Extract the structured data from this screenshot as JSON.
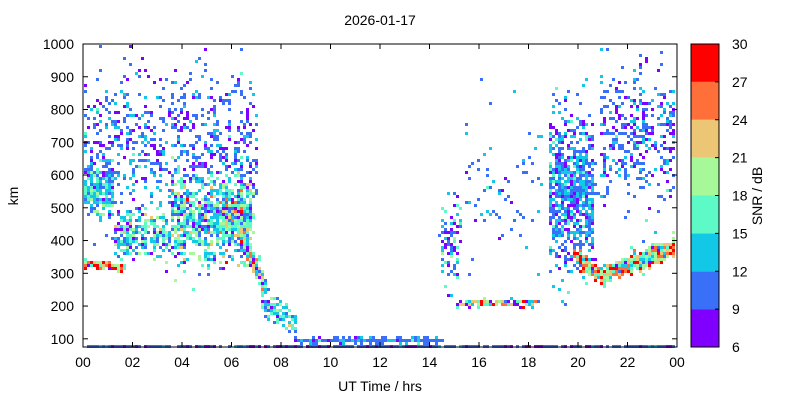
{
  "chart_data": {
    "type": "scatter",
    "title": "2026-01-17",
    "xlabel": "UT Time / hrs",
    "ylabel": "km",
    "xlim": [
      0,
      24
    ],
    "ylim": [
      75,
      1000
    ],
    "x_ticks": [
      "00",
      "02",
      "04",
      "06",
      "08",
      "10",
      "12",
      "14",
      "16",
      "18",
      "20",
      "22",
      "00"
    ],
    "x_tick_values": [
      0,
      2,
      4,
      6,
      8,
      10,
      12,
      14,
      16,
      18,
      20,
      22,
      24
    ],
    "y_ticks": [
      100,
      200,
      300,
      400,
      500,
      600,
      700,
      800,
      900,
      1000
    ],
    "colorbar": {
      "label": "SNR / dB",
      "range": [
        6,
        30
      ],
      "ticks": [
        "6",
        "9",
        "12",
        "15",
        "18",
        "21",
        "24",
        "27",
        "30"
      ],
      "bins": [
        {
          "from": 6,
          "to": 9,
          "color": "#7f00ff"
        },
        {
          "from": 9,
          "to": 12,
          "color": "#3a6ff7"
        },
        {
          "from": 12,
          "to": 15,
          "color": "#12c8e6"
        },
        {
          "from": 15,
          "to": 18,
          "color": "#5dfac8"
        },
        {
          "from": 18,
          "to": 21,
          "color": "#a6f898"
        },
        {
          "from": 21,
          "to": 24,
          "color": "#ecc674"
        },
        {
          "from": 24,
          "to": 27,
          "color": "#ff6f3a"
        },
        {
          "from": 27,
          "to": 30,
          "color": "#ff0000"
        }
      ]
    },
    "echo_regions": [
      {
        "t": [
          0,
          1.6
        ],
        "km": [
          335,
          322
        ],
        "spread": 8,
        "n": 160,
        "snr": 24,
        "snr_sd": 4
      },
      {
        "t": [
          0,
          1.2
        ],
        "km": [
          560,
          560
        ],
        "spread": 60,
        "n": 220,
        "snr": 14,
        "snr_sd": 3
      },
      {
        "t": [
          0,
          7
        ],
        "km": [
          700,
          700
        ],
        "spread": 200,
        "n": 700,
        "snr": 10.5,
        "snr_sd": 2
      },
      {
        "t": [
          1.2,
          3.5
        ],
        "km": [
          420,
          420
        ],
        "spread": 60,
        "n": 250,
        "snr": 14,
        "snr_sd": 4
      },
      {
        "t": [
          3.5,
          6.8
        ],
        "km": [
          470,
          470
        ],
        "spread": 110,
        "n": 900,
        "snr": 15,
        "snr_sd": 4.5
      },
      {
        "t": [
          6,
          7.3
        ],
        "km": [
          480,
          260
        ],
        "spread": 25,
        "n": 260,
        "snr": 17,
        "snr_sd": 6
      },
      {
        "t": [
          7.2,
          8.6
        ],
        "km": [
          220,
          140
        ],
        "spread": 30,
        "n": 110,
        "snr": 14,
        "snr_sd": 3
      },
      {
        "t": [
          8.5,
          14.5
        ],
        "km": [
          100,
          100
        ],
        "spread": 6,
        "n": 260,
        "snr": 11,
        "snr_sd": 2
      },
      {
        "t": [
          0,
          24
        ],
        "km": [
          82,
          82
        ],
        "spread": 1,
        "n": 420,
        "snr": 10,
        "snr_sd": 1.5
      },
      {
        "t": [
          14.4,
          15.2
        ],
        "km": [
          400,
          400
        ],
        "spread": 120,
        "n": 90,
        "snr": 12,
        "snr_sd": 4
      },
      {
        "t": [
          15,
          18.4
        ],
        "km": [
          210,
          215
        ],
        "spread": 8,
        "n": 110,
        "snr": 16,
        "snr_sd": 8
      },
      {
        "t": [
          15.4,
          18.5
        ],
        "km": [
          600,
          600
        ],
        "spread": 180,
        "n": 70,
        "snr": 11,
        "snr_sd": 2
      },
      {
        "t": [
          18.8,
          20.6
        ],
        "km": [
          560,
          560
        ],
        "spread": 190,
        "n": 800,
        "snr": 11.5,
        "snr_sd": 2.5
      },
      {
        "t": [
          19.8,
          21
        ],
        "km": [
          360,
          285
        ],
        "spread": 18,
        "n": 200,
        "snr": 22,
        "snr_sd": 6
      },
      {
        "t": [
          21,
          24
        ],
        "km": [
          300,
          390
        ],
        "spread": 22,
        "n": 550,
        "snr": 20,
        "snr_sd": 6
      },
      {
        "t": [
          20.8,
          24
        ],
        "km": [
          720,
          720
        ],
        "spread": 170,
        "n": 380,
        "snr": 10.5,
        "snr_sd": 2
      }
    ]
  }
}
